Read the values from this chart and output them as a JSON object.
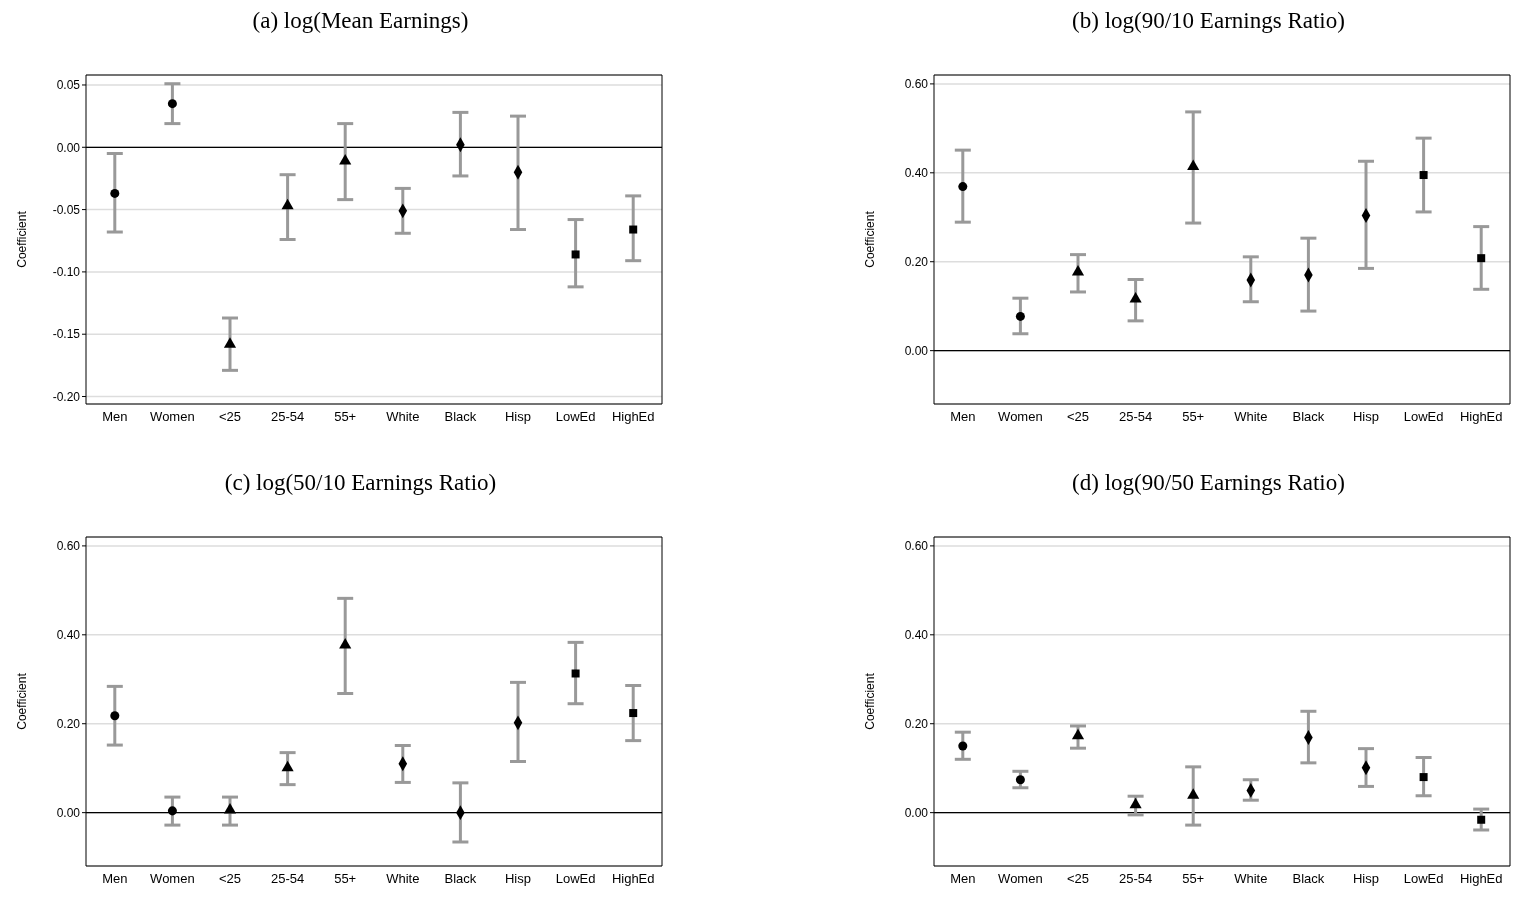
{
  "chart_data": [
    {
      "type": "scatter",
      "title": "(a) log(Mean Earnings)",
      "ylabel": "Coefficient",
      "categories": [
        "Men",
        "Women",
        "<25",
        "25-54",
        "55+",
        "White",
        "Black",
        "Hisp",
        "LowEd",
        "HighEd"
      ],
      "ylim": [
        -0.206,
        0.058
      ],
      "yticks": [
        {
          "value": -0.2,
          "label": "-0.20"
        },
        {
          "value": -0.15,
          "label": "-0.15"
        },
        {
          "value": -0.1,
          "label": "-0.10"
        },
        {
          "value": -0.05,
          "label": "-0.05"
        },
        {
          "value": 0,
          "label": "0.00"
        },
        {
          "value": 0.05,
          "label": "0.05"
        }
      ],
      "grid": "y",
      "ref_lines": [
        {
          "axis": "y",
          "value": 0,
          "color": "#000000"
        }
      ],
      "series": [
        {
          "color": "#000000",
          "marker": "circle",
          "values": [
            -0.037,
            0.035,
            null,
            null,
            null,
            null,
            null,
            null,
            null,
            null
          ],
          "errors": [
            [
              -0.068,
              -0.005
            ],
            [
              0.019,
              0.051
            ],
            null,
            null,
            null,
            null,
            null,
            null,
            null,
            null
          ]
        },
        {
          "color": "#000000",
          "marker": "triangle",
          "values": [
            null,
            null,
            -0.158,
            -0.047,
            -0.011,
            null,
            null,
            null,
            null,
            null
          ],
          "errors": [
            null,
            null,
            [
              -0.179,
              -0.137
            ],
            [
              -0.074,
              -0.022
            ],
            [
              -0.042,
              0.019
            ],
            null,
            null,
            null,
            null,
            null
          ]
        },
        {
          "color": "#000000",
          "marker": "diamond",
          "values": [
            null,
            null,
            null,
            null,
            null,
            -0.051,
            0.002,
            -0.02,
            null,
            null
          ],
          "errors": [
            null,
            null,
            null,
            null,
            null,
            [
              -0.069,
              -0.033
            ],
            [
              -0.023,
              0.028
            ],
            [
              -0.066,
              0.025
            ],
            null,
            null
          ]
        },
        {
          "color": "#000000",
          "marker": "square",
          "values": [
            null,
            null,
            null,
            null,
            null,
            null,
            null,
            null,
            -0.086,
            -0.066
          ],
          "errors": [
            null,
            null,
            null,
            null,
            null,
            null,
            null,
            null,
            [
              -0.112,
              -0.058
            ],
            [
              -0.091,
              -0.039
            ]
          ]
        }
      ]
    },
    {
      "type": "scatter",
      "title": "(b) log(90/10 Earnings Ratio)",
      "ylabel": "Coefficient",
      "categories": [
        "Men",
        "Women",
        "<25",
        "25-54",
        "55+",
        "White",
        "Black",
        "Hisp",
        "LowEd",
        "HighEd"
      ],
      "ylim": [
        -0.12,
        0.62
      ],
      "yticks": [
        {
          "value": 0,
          "label": "0.00"
        },
        {
          "value": 0.2,
          "label": "0.20"
        },
        {
          "value": 0.4,
          "label": "0.40"
        },
        {
          "value": 0.6,
          "label": "0.60"
        }
      ],
      "grid": "y",
      "ref_lines": [
        {
          "axis": "y",
          "value": 0,
          "color": "#000000"
        }
      ],
      "series": [
        {
          "color": "#000000",
          "marker": "circle",
          "values": [
            0.369,
            0.077,
            null,
            null,
            null,
            null,
            null,
            null,
            null,
            null
          ],
          "errors": [
            [
              0.289,
              0.451
            ],
            [
              0.038,
              0.118
            ],
            null,
            null,
            null,
            null,
            null,
            null,
            null,
            null
          ]
        },
        {
          "color": "#000000",
          "marker": "triangle",
          "values": [
            null,
            null,
            0.177,
            0.116,
            0.414,
            null,
            null,
            null,
            null,
            null
          ],
          "errors": [
            null,
            null,
            [
              0.132,
              0.216
            ],
            [
              0.067,
              0.16
            ],
            [
              0.287,
              0.537
            ],
            null,
            null,
            null,
            null,
            null
          ]
        },
        {
          "color": "#000000",
          "marker": "diamond",
          "values": [
            null,
            null,
            null,
            null,
            null,
            0.159,
            0.17,
            0.304,
            null,
            null
          ],
          "errors": [
            null,
            null,
            null,
            null,
            null,
            [
              0.11,
              0.211
            ],
            [
              0.089,
              0.253
            ],
            [
              0.185,
              0.426
            ],
            null,
            null
          ]
        },
        {
          "color": "#000000",
          "marker": "square",
          "values": [
            null,
            null,
            null,
            null,
            null,
            null,
            null,
            null,
            0.395,
            0.208
          ],
          "errors": [
            null,
            null,
            null,
            null,
            null,
            null,
            null,
            null,
            [
              0.312,
              0.478
            ],
            [
              0.138,
              0.279
            ]
          ]
        }
      ]
    },
    {
      "type": "scatter",
      "title": "(c) log(50/10 Earnings Ratio)",
      "ylabel": "Coefficient",
      "categories": [
        "Men",
        "Women",
        "<25",
        "25-54",
        "55+",
        "White",
        "Black",
        "Hisp",
        "LowEd",
        "HighEd"
      ],
      "ylim": [
        -0.12,
        0.62
      ],
      "yticks": [
        {
          "value": 0,
          "label": "0.00"
        },
        {
          "value": 0.2,
          "label": "0.20"
        },
        {
          "value": 0.4,
          "label": "0.40"
        },
        {
          "value": 0.6,
          "label": "0.60"
        }
      ],
      "grid": "y",
      "ref_lines": [
        {
          "axis": "y",
          "value": 0,
          "color": "#000000"
        }
      ],
      "series": [
        {
          "color": "#000000",
          "marker": "circle",
          "values": [
            0.218,
            0.004,
            null,
            null,
            null,
            null,
            null,
            null,
            null,
            null
          ],
          "errors": [
            [
              0.152,
              0.284
            ],
            [
              -0.028,
              0.035
            ],
            null,
            null,
            null,
            null,
            null,
            null,
            null,
            null
          ]
        },
        {
          "color": "#000000",
          "marker": "triangle",
          "values": [
            null,
            null,
            0.006,
            0.101,
            0.377,
            null,
            null,
            null,
            null,
            null
          ],
          "errors": [
            null,
            null,
            [
              -0.028,
              0.035
            ],
            [
              0.063,
              0.135
            ],
            [
              0.268,
              0.482
            ],
            null,
            null,
            null,
            null,
            null
          ]
        },
        {
          "color": "#000000",
          "marker": "diamond",
          "values": [
            null,
            null,
            null,
            null,
            null,
            0.11,
            0,
            0.202,
            null,
            null
          ],
          "errors": [
            null,
            null,
            null,
            null,
            null,
            [
              0.068,
              0.151
            ],
            [
              -0.066,
              0.067
            ],
            [
              0.115,
              0.293
            ],
            null,
            null
          ]
        },
        {
          "color": "#000000",
          "marker": "square",
          "values": [
            null,
            null,
            null,
            null,
            null,
            null,
            null,
            null,
            0.313,
            0.224
          ],
          "errors": [
            null,
            null,
            null,
            null,
            null,
            null,
            null,
            null,
            [
              0.245,
              0.383
            ],
            [
              0.162,
              0.286
            ]
          ]
        }
      ]
    },
    {
      "type": "scatter",
      "title": "(d) log(90/50 Earnings Ratio)",
      "ylabel": "Coefficient",
      "categories": [
        "Men",
        "Women",
        "<25",
        "25-54",
        "55+",
        "White",
        "Black",
        "Hisp",
        "LowEd",
        "HighEd"
      ],
      "ylim": [
        -0.12,
        0.62
      ],
      "yticks": [
        {
          "value": 0,
          "label": "0.00"
        },
        {
          "value": 0.2,
          "label": "0.20"
        },
        {
          "value": 0.4,
          "label": "0.40"
        },
        {
          "value": 0.6,
          "label": "0.60"
        }
      ],
      "grid": "y",
      "ref_lines": [
        {
          "axis": "y",
          "value": 0,
          "color": "#000000"
        }
      ],
      "series": [
        {
          "color": "#000000",
          "marker": "circle",
          "values": [
            0.15,
            0.074,
            null,
            null,
            null,
            null,
            null,
            null,
            null,
            null
          ],
          "errors": [
            [
              0.12,
              0.181
            ],
            [
              0.056,
              0.093
            ],
            null,
            null,
            null,
            null,
            null,
            null,
            null,
            null
          ]
        },
        {
          "color": "#000000",
          "marker": "triangle",
          "values": [
            null,
            null,
            0.173,
            0.018,
            0.039,
            null,
            null,
            null,
            null,
            null
          ],
          "errors": [
            null,
            null,
            [
              0.145,
              0.195
            ],
            [
              -0.005,
              0.037
            ],
            [
              -0.028,
              0.103
            ],
            null,
            null,
            null,
            null,
            null
          ]
        },
        {
          "color": "#000000",
          "marker": "diamond",
          "values": [
            null,
            null,
            null,
            null,
            null,
            0.05,
            0.169,
            0.101,
            null,
            null
          ],
          "errors": [
            null,
            null,
            null,
            null,
            null,
            [
              0.028,
              0.074
            ],
            [
              0.112,
              0.228
            ],
            [
              0.059,
              0.144
            ],
            null,
            null
          ]
        },
        {
          "color": "#000000",
          "marker": "square",
          "values": [
            null,
            null,
            null,
            null,
            null,
            null,
            null,
            null,
            0.08,
            -0.016
          ],
          "errors": [
            null,
            null,
            null,
            null,
            null,
            null,
            null,
            null,
            [
              0.038,
              0.124
            ],
            [
              -0.039,
              0.008
            ]
          ]
        }
      ]
    }
  ]
}
